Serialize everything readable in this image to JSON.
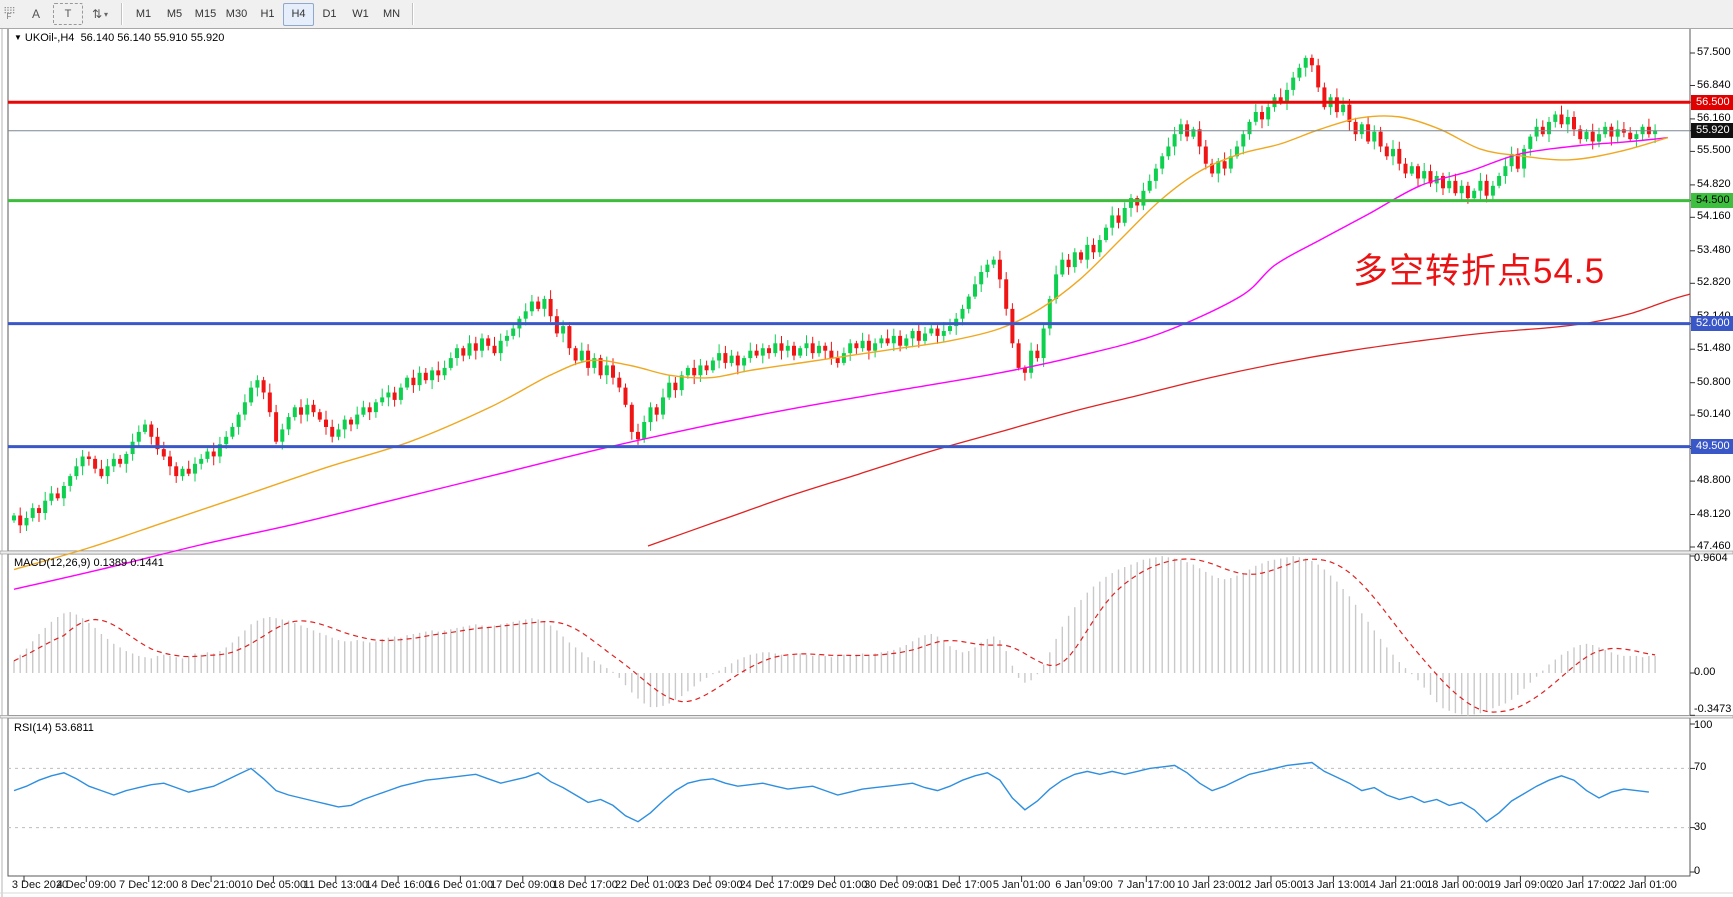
{
  "toolbar": {
    "grip_label": "F",
    "icons": [
      {
        "name": "cursor-select-icon",
        "glyph": "A"
      },
      {
        "name": "text-tool-icon",
        "glyph": "T"
      },
      {
        "name": "crosshair-arrows-icon",
        "glyph": "⇅"
      }
    ],
    "dropdown_caret": "▾",
    "timeframes": [
      {
        "label": "M1",
        "active": false
      },
      {
        "label": "M5",
        "active": false
      },
      {
        "label": "M15",
        "active": false
      },
      {
        "label": "M30",
        "active": false
      },
      {
        "label": "H1",
        "active": false
      },
      {
        "label": "H4",
        "active": true
      },
      {
        "label": "D1",
        "active": false
      },
      {
        "label": "W1",
        "active": false
      },
      {
        "label": "MN",
        "active": false
      }
    ]
  },
  "chart": {
    "collapse_glyph": "▼",
    "symbol": "UKOil-,H4",
    "open": "56.140",
    "high": "56.140",
    "low": "55.910",
    "close": "55.920"
  },
  "annotation": {
    "text": "多空转折点54.5",
    "color": "#ea1212"
  },
  "price_axis": {
    "labels": [
      "57.500",
      "56.840",
      "56.160",
      "55.500",
      "54.820",
      "54.160",
      "53.480",
      "52.820",
      "52.140",
      "51.480",
      "50.800",
      "50.140",
      "49.460",
      "48.800",
      "48.120",
      "47.460"
    ],
    "badges": [
      {
        "value": "56.500",
        "bg": "#e00000",
        "fg": "#ffffff"
      },
      {
        "value": "55.920",
        "bg": "#101010",
        "fg": "#ffffff"
      },
      {
        "value": "54.500",
        "bg": "#3fbf3f",
        "fg": "#000000"
      },
      {
        "value": "52.000",
        "bg": "#3a57c8",
        "fg": "#ffffff"
      },
      {
        "value": "49.500",
        "bg": "#3a57c8",
        "fg": "#ffffff"
      }
    ]
  },
  "chart_data": {
    "type": "candlestick",
    "symbol": "UKOil",
    "timeframe": "H4",
    "title": "UKOil-,H4 56.140 56.140 55.910 55.920",
    "ylim": [
      47.46,
      57.5
    ],
    "grid": false,
    "colors": {
      "up": "#0cd04e",
      "down": "#f01515",
      "ma_fast": "#efa820",
      "ma_mid": "#ff00ff",
      "ma_slow": "#e02222",
      "rsi": "#2e8fe0",
      "macd_bar": "#c9c9c9",
      "macd_signal": "#e02020"
    },
    "hlines": [
      {
        "price": 56.5,
        "color": "#ea0606",
        "width": 3
      },
      {
        "price": 54.5,
        "color": "#3cbd3c",
        "width": 3
      },
      {
        "price": 52.0,
        "color": "#3a57c8",
        "width": 3
      },
      {
        "price": 49.5,
        "color": "#3a57c8",
        "width": 3
      },
      {
        "price": 55.92,
        "color": "#7b8794",
        "width": 1
      }
    ],
    "closes": [
      48.1,
      47.9,
      48.05,
      48.25,
      48.15,
      48.4,
      48.55,
      48.45,
      48.7,
      48.9,
      49.1,
      49.3,
      49.25,
      49.05,
      48.9,
      49.1,
      49.25,
      49.15,
      49.35,
      49.6,
      49.8,
      49.95,
      49.7,
      49.45,
      49.3,
      49.1,
      48.9,
      49.05,
      48.95,
      49.15,
      49.25,
      49.4,
      49.3,
      49.55,
      49.7,
      49.9,
      50.15,
      50.4,
      50.7,
      50.85,
      50.6,
      50.2,
      49.6,
      49.85,
      50.1,
      50.3,
      50.15,
      50.35,
      50.2,
      50.05,
      49.9,
      49.7,
      49.85,
      50.05,
      49.95,
      50.15,
      50.3,
      50.2,
      50.4,
      50.5,
      50.6,
      50.45,
      50.7,
      50.9,
      50.75,
      51.0,
      50.85,
      51.05,
      50.95,
      51.1,
      51.3,
      51.5,
      51.35,
      51.6,
      51.45,
      51.7,
      51.55,
      51.4,
      51.65,
      51.75,
      51.9,
      52.1,
      52.25,
      52.45,
      52.3,
      52.5,
      52.15,
      51.8,
      51.95,
      51.5,
      51.25,
      51.45,
      51.1,
      51.3,
      50.95,
      51.15,
      50.9,
      50.7,
      50.35,
      49.8,
      49.65,
      50.0,
      50.3,
      50.15,
      50.5,
      50.8,
      50.65,
      50.95,
      51.1,
      50.95,
      51.15,
      51.05,
      51.25,
      51.4,
      51.2,
      51.35,
      51.15,
      51.3,
      51.45,
      51.35,
      51.5,
      51.4,
      51.6,
      51.45,
      51.55,
      51.35,
      51.5,
      51.6,
      51.4,
      51.55,
      51.45,
      51.3,
      51.2,
      51.4,
      51.6,
      51.5,
      51.65,
      51.45,
      51.6,
      51.7,
      51.6,
      51.75,
      51.55,
      51.7,
      51.85,
      51.65,
      51.8,
      51.9,
      51.75,
      51.85,
      51.95,
      52.1,
      52.3,
      52.55,
      52.8,
      53.05,
      53.2,
      53.3,
      52.9,
      52.3,
      51.6,
      51.1,
      51.0,
      51.45,
      51.3,
      51.9,
      52.5,
      53.0,
      53.3,
      53.15,
      53.45,
      53.3,
      53.6,
      53.45,
      53.7,
      53.95,
      54.2,
      54.05,
      54.35,
      54.55,
      54.4,
      54.7,
      54.9,
      55.15,
      55.4,
      55.6,
      55.85,
      56.05,
      55.8,
      55.95,
      55.6,
      55.25,
      55.05,
      55.3,
      55.15,
      55.4,
      55.6,
      55.85,
      56.1,
      56.3,
      56.15,
      56.4,
      56.6,
      56.5,
      56.75,
      57.0,
      57.2,
      57.4,
      57.25,
      56.8,
      56.4,
      56.6,
      56.3,
      56.45,
      56.1,
      55.85,
      56.05,
      55.7,
      55.9,
      55.6,
      55.4,
      55.55,
      55.25,
      55.05,
      55.2,
      54.95,
      55.1,
      54.85,
      55.0,
      54.75,
      54.9,
      54.65,
      54.8,
      54.55,
      54.7,
      54.9,
      54.6,
      54.8,
      55.0,
      55.2,
      55.45,
      55.15,
      55.55,
      55.8,
      56.0,
      55.85,
      56.1,
      56.25,
      56.05,
      56.2,
      55.95,
      55.75,
      55.9,
      55.7,
      55.85,
      56.0,
      55.8,
      55.95,
      55.88,
      55.75,
      55.85,
      56.0,
      55.85,
      55.92
    ],
    "ma_fast_orange": [
      [
        14,
        47.0
      ],
      [
        90,
        47.45
      ],
      [
        170,
        48.0
      ],
      [
        250,
        48.55
      ],
      [
        330,
        49.1
      ],
      [
        410,
        49.6
      ],
      [
        490,
        50.3
      ],
      [
        550,
        50.95
      ],
      [
        590,
        51.25
      ],
      [
        630,
        51.15
      ],
      [
        670,
        50.95
      ],
      [
        710,
        50.9
      ],
      [
        750,
        51.05
      ],
      [
        800,
        51.2
      ],
      [
        850,
        51.35
      ],
      [
        900,
        51.5
      ],
      [
        950,
        51.65
      ],
      [
        1000,
        51.9
      ],
      [
        1040,
        52.3
      ],
      [
        1080,
        52.9
      ],
      [
        1120,
        53.7
      ],
      [
        1160,
        54.5
      ],
      [
        1200,
        55.1
      ],
      [
        1240,
        55.45
      ],
      [
        1280,
        55.65
      ],
      [
        1320,
        55.95
      ],
      [
        1360,
        56.18
      ],
      [
        1400,
        56.2
      ],
      [
        1440,
        55.95
      ],
      [
        1480,
        55.55
      ],
      [
        1520,
        55.41
      ],
      [
        1570,
        55.33
      ],
      [
        1620,
        55.5
      ],
      [
        1668,
        55.78
      ]
    ],
    "ma_mid_magenta": [
      [
        14,
        46.6
      ],
      [
        100,
        47.0
      ],
      [
        200,
        47.5
      ],
      [
        300,
        47.95
      ],
      [
        400,
        48.45
      ],
      [
        500,
        48.95
      ],
      [
        600,
        49.45
      ],
      [
        700,
        49.9
      ],
      [
        800,
        50.3
      ],
      [
        900,
        50.65
      ],
      [
        1000,
        51.0
      ],
      [
        1080,
        51.35
      ],
      [
        1160,
        51.8
      ],
      [
        1240,
        52.55
      ],
      [
        1275,
        53.19
      ],
      [
        1320,
        53.7
      ],
      [
        1367,
        54.21
      ],
      [
        1420,
        54.8
      ],
      [
        1470,
        55.1
      ],
      [
        1520,
        55.45
      ],
      [
        1580,
        55.62
      ],
      [
        1630,
        55.7
      ],
      [
        1668,
        55.78
      ]
    ],
    "ma_slow_red": [
      [
        648,
        47.48
      ],
      [
        720,
        48.0
      ],
      [
        790,
        48.5
      ],
      [
        860,
        48.95
      ],
      [
        930,
        49.4
      ],
      [
        1000,
        49.8
      ],
      [
        1070,
        50.2
      ],
      [
        1140,
        50.55
      ],
      [
        1210,
        50.9
      ],
      [
        1280,
        51.2
      ],
      [
        1350,
        51.45
      ],
      [
        1420,
        51.65
      ],
      [
        1490,
        51.82
      ],
      [
        1550,
        51.92
      ],
      [
        1590,
        52.02
      ],
      [
        1630,
        52.2
      ],
      [
        1670,
        52.48
      ],
      [
        1690,
        52.6
      ]
    ],
    "macd": {
      "label": "MACD(12,26,9)",
      "main": "0.1389",
      "signal": "0.1441",
      "scale_max": "0.9604",
      "scale_zero": "0.00",
      "scale_min": "-0.3473",
      "values": [
        0.1,
        0.15,
        0.2,
        0.26,
        0.32,
        0.37,
        0.42,
        0.46,
        0.49,
        0.5,
        0.48,
        0.45,
        0.41,
        0.37,
        0.32,
        0.28,
        0.24,
        0.21,
        0.18,
        0.16,
        0.14,
        0.13,
        0.12,
        0.14,
        0.15,
        0.14,
        0.13,
        0.12,
        0.14,
        0.16,
        0.15,
        0.17,
        0.16,
        0.18,
        0.21,
        0.25,
        0.3,
        0.35,
        0.4,
        0.43,
        0.45,
        0.46,
        0.45,
        0.44,
        0.43,
        0.41,
        0.39,
        0.37,
        0.35,
        0.33,
        0.31,
        0.29,
        0.27,
        0.26,
        0.26,
        0.27,
        0.26,
        0.25,
        0.26,
        0.28,
        0.29,
        0.3,
        0.29,
        0.31,
        0.32,
        0.33,
        0.34,
        0.35,
        0.34,
        0.35,
        0.36,
        0.37,
        0.38,
        0.39,
        0.4,
        0.39,
        0.38,
        0.39,
        0.4,
        0.41,
        0.42,
        0.43,
        0.44,
        0.45,
        0.44,
        0.42,
        0.39,
        0.35,
        0.3,
        0.25,
        0.21,
        0.17,
        0.13,
        0.1,
        0.07,
        0.04,
        0.01,
        -0.04,
        -0.1,
        -0.16,
        -0.21,
        -0.25,
        -0.28,
        -0.28,
        -0.27,
        -0.25,
        -0.22,
        -0.19,
        -0.15,
        -0.11,
        -0.07,
        -0.04,
        -0.01,
        0.02,
        0.05,
        0.08,
        0.11,
        0.13,
        0.15,
        0.16,
        0.17,
        0.17,
        0.16,
        0.15,
        0.14,
        0.15,
        0.16,
        0.15,
        0.14,
        0.15,
        0.14,
        0.13,
        0.14,
        0.15,
        0.14,
        0.15,
        0.16,
        0.15,
        0.16,
        0.17,
        0.18,
        0.19,
        0.21,
        0.23,
        0.26,
        0.29,
        0.31,
        0.32,
        0.3,
        0.26,
        0.22,
        0.19,
        0.17,
        0.18,
        0.21,
        0.25,
        0.28,
        0.3,
        0.27,
        0.18,
        0.06,
        -0.04,
        -0.08,
        -0.06,
        -0.01,
        0.07,
        0.17,
        0.28,
        0.38,
        0.47,
        0.54,
        0.6,
        0.66,
        0.71,
        0.75,
        0.79,
        0.82,
        0.85,
        0.87,
        0.89,
        0.91,
        0.93,
        0.94,
        0.95,
        0.96,
        0.95,
        0.94,
        0.93,
        0.91,
        0.89,
        0.86,
        0.83,
        0.8,
        0.78,
        0.77,
        0.78,
        0.8,
        0.82,
        0.85,
        0.88,
        0.9,
        0.92,
        0.93,
        0.94,
        0.95,
        0.96,
        0.95,
        0.94,
        0.92,
        0.89,
        0.85,
        0.8,
        0.75,
        0.69,
        0.63,
        0.56,
        0.49,
        0.42,
        0.35,
        0.28,
        0.21,
        0.15,
        0.09,
        0.04,
        -0.01,
        -0.06,
        -0.12,
        -0.18,
        -0.24,
        -0.29,
        -0.31,
        -0.33,
        -0.34,
        -0.35,
        -0.34,
        -0.33,
        -0.31,
        -0.29,
        -0.27,
        -0.25,
        -0.22,
        -0.18,
        -0.13,
        -0.08,
        -0.03,
        0.02,
        0.07,
        0.11,
        0.15,
        0.18,
        0.21,
        0.23,
        0.24,
        0.23,
        0.21,
        0.19,
        0.17,
        0.15,
        0.14,
        0.14,
        0.14,
        0.13,
        0.14,
        0.14
      ]
    },
    "rsi": {
      "label": "RSI(14)",
      "value": "53.6811",
      "levels": [
        70,
        30
      ],
      "scale": [
        "100",
        "70",
        "30",
        "0"
      ],
      "step": 2,
      "values": [
        55,
        58,
        62,
        65,
        67,
        63,
        58,
        55,
        52,
        55,
        57,
        59,
        60,
        57,
        54,
        56,
        58,
        62,
        66,
        70,
        63,
        55,
        52,
        50,
        48,
        46,
        44,
        45,
        49,
        52,
        55,
        58,
        60,
        62,
        63,
        64,
        65,
        66,
        63,
        60,
        62,
        64,
        67,
        61,
        57,
        52,
        47,
        49,
        45,
        38,
        34,
        40,
        48,
        55,
        60,
        62,
        63,
        60,
        58,
        59,
        60,
        58,
        56,
        57,
        58,
        55,
        52,
        54,
        56,
        57,
        58,
        59,
        60,
        57,
        55,
        58,
        62,
        65,
        67,
        62,
        50,
        42,
        48,
        56,
        62,
        66,
        68,
        66,
        68,
        66,
        68,
        70,
        71,
        72,
        67,
        60,
        55,
        58,
        62,
        66,
        68,
        70,
        72,
        73,
        74,
        68,
        64,
        60,
        55,
        57,
        52,
        49,
        51,
        47,
        49,
        45,
        47,
        42,
        34,
        40,
        48,
        53,
        58,
        62,
        65,
        62,
        55,
        50,
        54,
        56,
        55,
        54
      ]
    },
    "time_labels": [
      "3 Dec 2020",
      "4 Dec 09:00",
      "7 Dec 12:00",
      "8 Dec 21:00",
      "10 Dec 05:00",
      "11 Dec 13:00",
      "14 Dec 16:00",
      "16 Dec 01:00",
      "17 Dec 09:00",
      "18 Dec 17:00",
      "22 Dec 01:00",
      "23 Dec 09:00",
      "24 Dec 17:00",
      "29 Dec 01:00",
      "30 Dec 09:00",
      "31 Dec 17:00",
      "5 Jan 01:00",
      "6 Jan 09:00",
      "7 Jan 17:00",
      "10 Jan 23:00",
      "12 Jan 05:00",
      "13 Jan 13:00",
      "14 Jan 21:00",
      "18 Jan 00:00",
      "19 Jan 09:00",
      "20 Jan 17:00",
      "22 Jan 01:00"
    ]
  }
}
